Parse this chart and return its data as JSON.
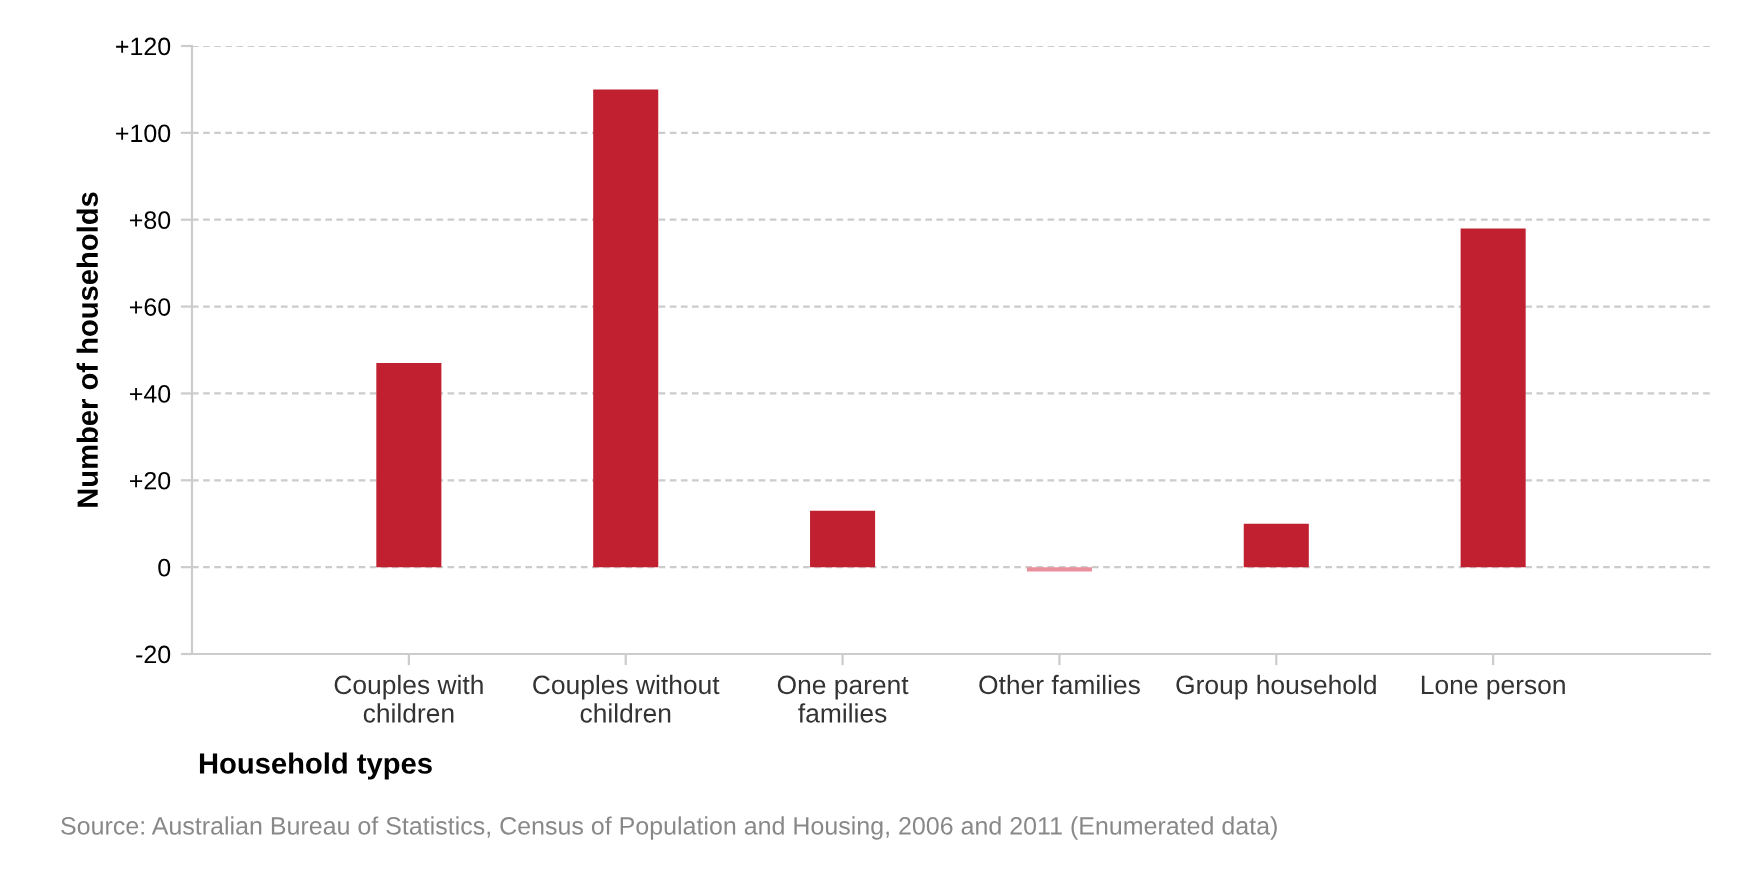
{
  "chart_data": {
    "type": "bar",
    "xlabel": "Household types",
    "ylabel": "Number of households",
    "categories": [
      "Couples with\nchildren",
      "Couples without\nchildren",
      "One parent\nfamilies",
      "Other families",
      "Group household",
      "Lone person"
    ],
    "values": [
      47,
      110,
      13,
      -1,
      10,
      78
    ],
    "colors": [
      "#c0202f",
      "#c0202f",
      "#c0202f",
      "#e8909b",
      "#c0202f",
      "#c0202f"
    ],
    "ylim": [
      -20,
      120
    ],
    "yticks": [
      -20,
      0,
      {
        "value": 20,
        "label": "+20"
      },
      {
        "value": 40,
        "label": "+40"
      },
      {
        "value": 60,
        "label": "+60"
      },
      {
        "value": 80,
        "label": "+80"
      },
      {
        "value": 100,
        "label": "+100"
      },
      {
        "value": 120,
        "label": "+120"
      }
    ],
    "grid": "y",
    "annotations": [
      "Source: Australian Bureau of Statistics, Census of Population and Housing, 2006 and 2011 (Enumerated data)"
    ]
  }
}
